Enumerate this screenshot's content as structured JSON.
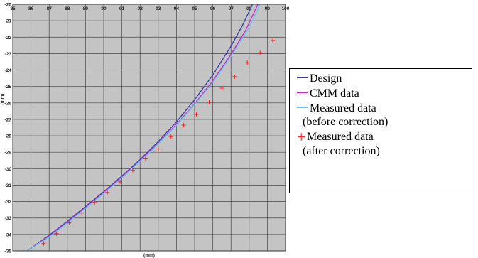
{
  "chart_data": {
    "type": "line",
    "xlabel": "(mm)",
    "ylabel": "(mm)",
    "xlim": [
      85,
      100
    ],
    "ylim": [
      -35,
      -20
    ],
    "x_ticks": [
      85,
      86,
      87,
      88,
      89,
      90,
      91,
      92,
      93,
      94,
      95,
      96,
      97,
      98,
      99,
      100
    ],
    "y_ticks": [
      -20,
      -21,
      -22,
      -23,
      -24,
      -25,
      -26,
      -27,
      -28,
      -29,
      -30,
      -31,
      -32,
      -33,
      -34,
      -35
    ],
    "grid": true,
    "legend_position": "right",
    "series": [
      {
        "name": "Design",
        "color": "#3b3bb0",
        "style": "line",
        "points": [
          [
            85.8,
            -35
          ],
          [
            87,
            -34.05
          ],
          [
            88,
            -33.2
          ],
          [
            89,
            -32.3
          ],
          [
            90,
            -31.4
          ],
          [
            91,
            -30.45
          ],
          [
            92,
            -29.45
          ],
          [
            93,
            -28.35
          ],
          [
            94,
            -27.15
          ],
          [
            95,
            -25.8
          ],
          [
            96,
            -24.3
          ],
          [
            97,
            -22.55
          ],
          [
            97.6,
            -21.35
          ],
          [
            98.1,
            -20.2
          ],
          [
            98.25,
            -19.85
          ]
        ]
      },
      {
        "name": "CMM data",
        "color": "#d11fd1",
        "style": "line",
        "points": [
          [
            85.8,
            -35
          ],
          [
            87,
            -34.1
          ],
          [
            88,
            -33.25
          ],
          [
            89,
            -32.35
          ],
          [
            90,
            -31.45
          ],
          [
            91,
            -30.5
          ],
          [
            92,
            -29.5
          ],
          [
            93,
            -28.45
          ],
          [
            94,
            -27.3
          ],
          [
            95,
            -26.05
          ],
          [
            96,
            -24.65
          ],
          [
            97,
            -23.05
          ],
          [
            97.8,
            -21.6
          ],
          [
            98.4,
            -20.2
          ],
          [
            98.55,
            -19.85
          ]
        ]
      },
      {
        "name": "Measured data",
        "name_line2": "(before correction)",
        "color": "#5fc8e8",
        "style": "line",
        "points": [
          [
            85.8,
            -35
          ],
          [
            87,
            -34.15
          ],
          [
            88,
            -33.3
          ],
          [
            89,
            -32.4
          ],
          [
            90,
            -31.5
          ],
          [
            91,
            -30.55
          ],
          [
            92,
            -29.55
          ],
          [
            93,
            -28.5
          ],
          [
            94,
            -27.35
          ],
          [
            95,
            -26.1
          ],
          [
            96,
            -24.75
          ],
          [
            97,
            -23.15
          ],
          [
            97.9,
            -21.6
          ],
          [
            98.5,
            -20.25
          ],
          [
            98.65,
            -19.85
          ]
        ]
      },
      {
        "name": "Measured data",
        "name_line2": "(after correction)",
        "color": "#ff2020",
        "style": "marker",
        "points": [
          [
            86.7,
            -34.55
          ],
          [
            87.4,
            -33.95
          ],
          [
            88.1,
            -33.3
          ],
          [
            88.8,
            -32.7
          ],
          [
            89.5,
            -32.05
          ],
          [
            90.2,
            -31.45
          ],
          [
            90.9,
            -30.8
          ],
          [
            91.6,
            -30.1
          ],
          [
            92.3,
            -29.4
          ],
          [
            93.0,
            -28.8
          ],
          [
            93.7,
            -28.05
          ],
          [
            94.4,
            -27.35
          ],
          [
            95.1,
            -26.7
          ],
          [
            95.8,
            -25.95
          ],
          [
            96.5,
            -25.1
          ],
          [
            97.2,
            -24.4
          ],
          [
            97.9,
            -23.55
          ],
          [
            98.6,
            -22.95
          ],
          [
            99.3,
            -22.2
          ]
        ]
      }
    ]
  }
}
